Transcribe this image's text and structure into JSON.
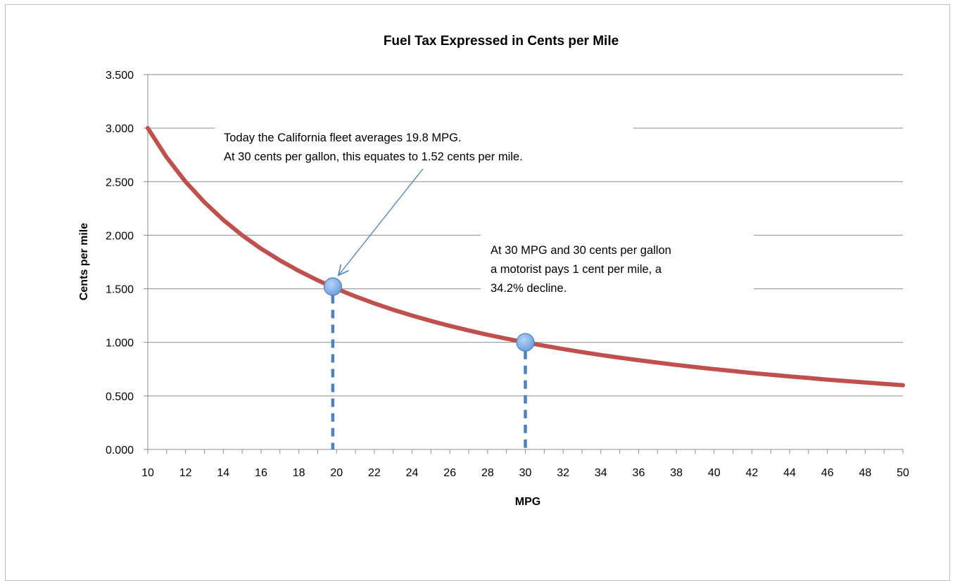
{
  "chart_data": {
    "type": "line",
    "title": "Fuel Tax Expressed in Cents per Mile",
    "xlabel": "MPG",
    "ylabel": "Cents per mile",
    "xlim": [
      10,
      50
    ],
    "ylim": [
      0,
      3.5
    ],
    "x_ticks": [
      "10",
      "12",
      "14",
      "16",
      "18",
      "20",
      "22",
      "24",
      "26",
      "28",
      "30",
      "32",
      "34",
      "36",
      "38",
      "40",
      "42",
      "44",
      "46",
      "48",
      "50"
    ],
    "y_ticks": [
      "0.000",
      "0.500",
      "1.000",
      "1.500",
      "2.000",
      "2.500",
      "3.000",
      "3.500"
    ],
    "grid": "horizontal",
    "colors": {
      "line": "#c0504d",
      "marker": "#6d9fe0",
      "dashes": "#4f81bd",
      "arrow": "#4f81bd",
      "grid": "#8c8c8c"
    },
    "series": [
      {
        "x": [
          10,
          11,
          12,
          13,
          14,
          15,
          16,
          17,
          18,
          19,
          20,
          21,
          22,
          23,
          24,
          25,
          26,
          27,
          28,
          29,
          30,
          31,
          32,
          33,
          34,
          35,
          36,
          37,
          38,
          39,
          40,
          41,
          42,
          43,
          44,
          45,
          46,
          47,
          48,
          49,
          50
        ],
        "values": [
          3.0,
          2.727,
          2.5,
          2.308,
          2.143,
          2.0,
          1.875,
          1.765,
          1.667,
          1.579,
          1.5,
          1.429,
          1.364,
          1.304,
          1.25,
          1.2,
          1.154,
          1.111,
          1.071,
          1.034,
          1.0,
          0.968,
          0.938,
          0.909,
          0.882,
          0.857,
          0.833,
          0.811,
          0.789,
          0.769,
          0.75,
          0.732,
          0.714,
          0.698,
          0.682,
          0.667,
          0.652,
          0.638,
          0.625,
          0.612,
          0.6
        ]
      }
    ],
    "highlights": [
      {
        "x": 19.8,
        "y": 1.52
      },
      {
        "x": 30,
        "y": 1.0
      }
    ],
    "annotations": [
      {
        "lines": [
          "Today the California fleet averages 19.8 MPG.",
          "At 30 cents per gallon, this equates to 1.52 cents per mile."
        ]
      },
      {
        "lines": [
          "At 30 MPG and 30 cents per gallon",
          "a motorist pays 1 cent per mile, a",
          "34.2% decline."
        ]
      }
    ]
  }
}
